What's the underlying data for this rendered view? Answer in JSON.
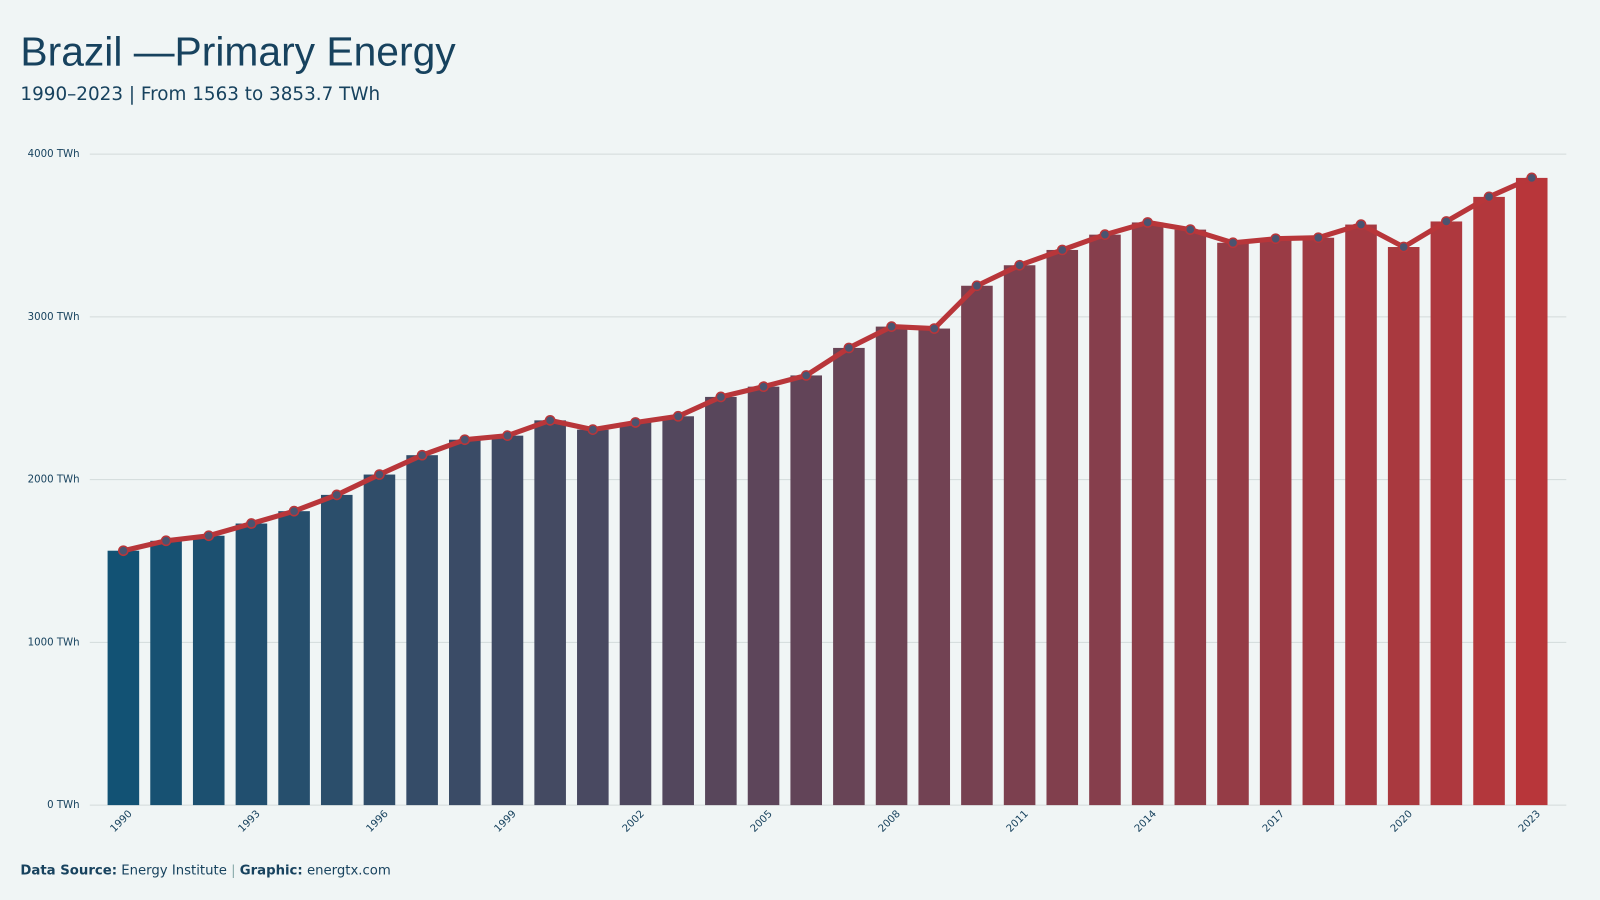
{
  "chart_data": {
    "type": "bar_line",
    "title": "Brazil —Primary Energy",
    "subtitle": "1990–2023 | From 1563 to 3853.7 TWh",
    "categories": [
      "1990",
      null,
      null,
      "1993",
      null,
      null,
      "1996",
      null,
      null,
      "1999",
      null,
      null,
      "2002",
      null,
      null,
      "2005",
      null,
      null,
      "2008",
      null,
      null,
      "2011",
      null,
      null,
      "2014",
      null,
      null,
      "2017",
      null,
      null,
      "2020",
      null,
      null,
      "2023"
    ],
    "values": [
      1563,
      1624,
      1655,
      1730,
      1806,
      1906,
      2031,
      2150,
      2245,
      2270,
      2364,
      2307,
      2351,
      2389,
      2508,
      2571,
      2640,
      2809,
      2940,
      2928,
      3191,
      3317,
      3411,
      3505,
      3580,
      3536,
      3455,
      3480,
      3486,
      3567,
      3429,
      3586,
      3737,
      3853.7
    ],
    "bar_color_start": "#125274",
    "bar_color_end": "#b8363a",
    "line_color": "#b8363a",
    "dot_color": "#4a5470",
    "ylim": [
      0,
      4000
    ],
    "yticks": [
      {
        "value": 0,
        "label": "0 TWh"
      },
      {
        "value": 1000,
        "label": "1000 TWh"
      },
      {
        "value": 2000,
        "label": "2000 TWh"
      },
      {
        "value": 3000,
        "label": "3000 TWh"
      },
      {
        "value": 4000,
        "label": "4000 TWh"
      }
    ],
    "grid": true,
    "source_label": "Data Source:",
    "source": "Energy Institute",
    "separator": "|",
    "credit_label": "Graphic:",
    "credit": "energtx.com"
  }
}
